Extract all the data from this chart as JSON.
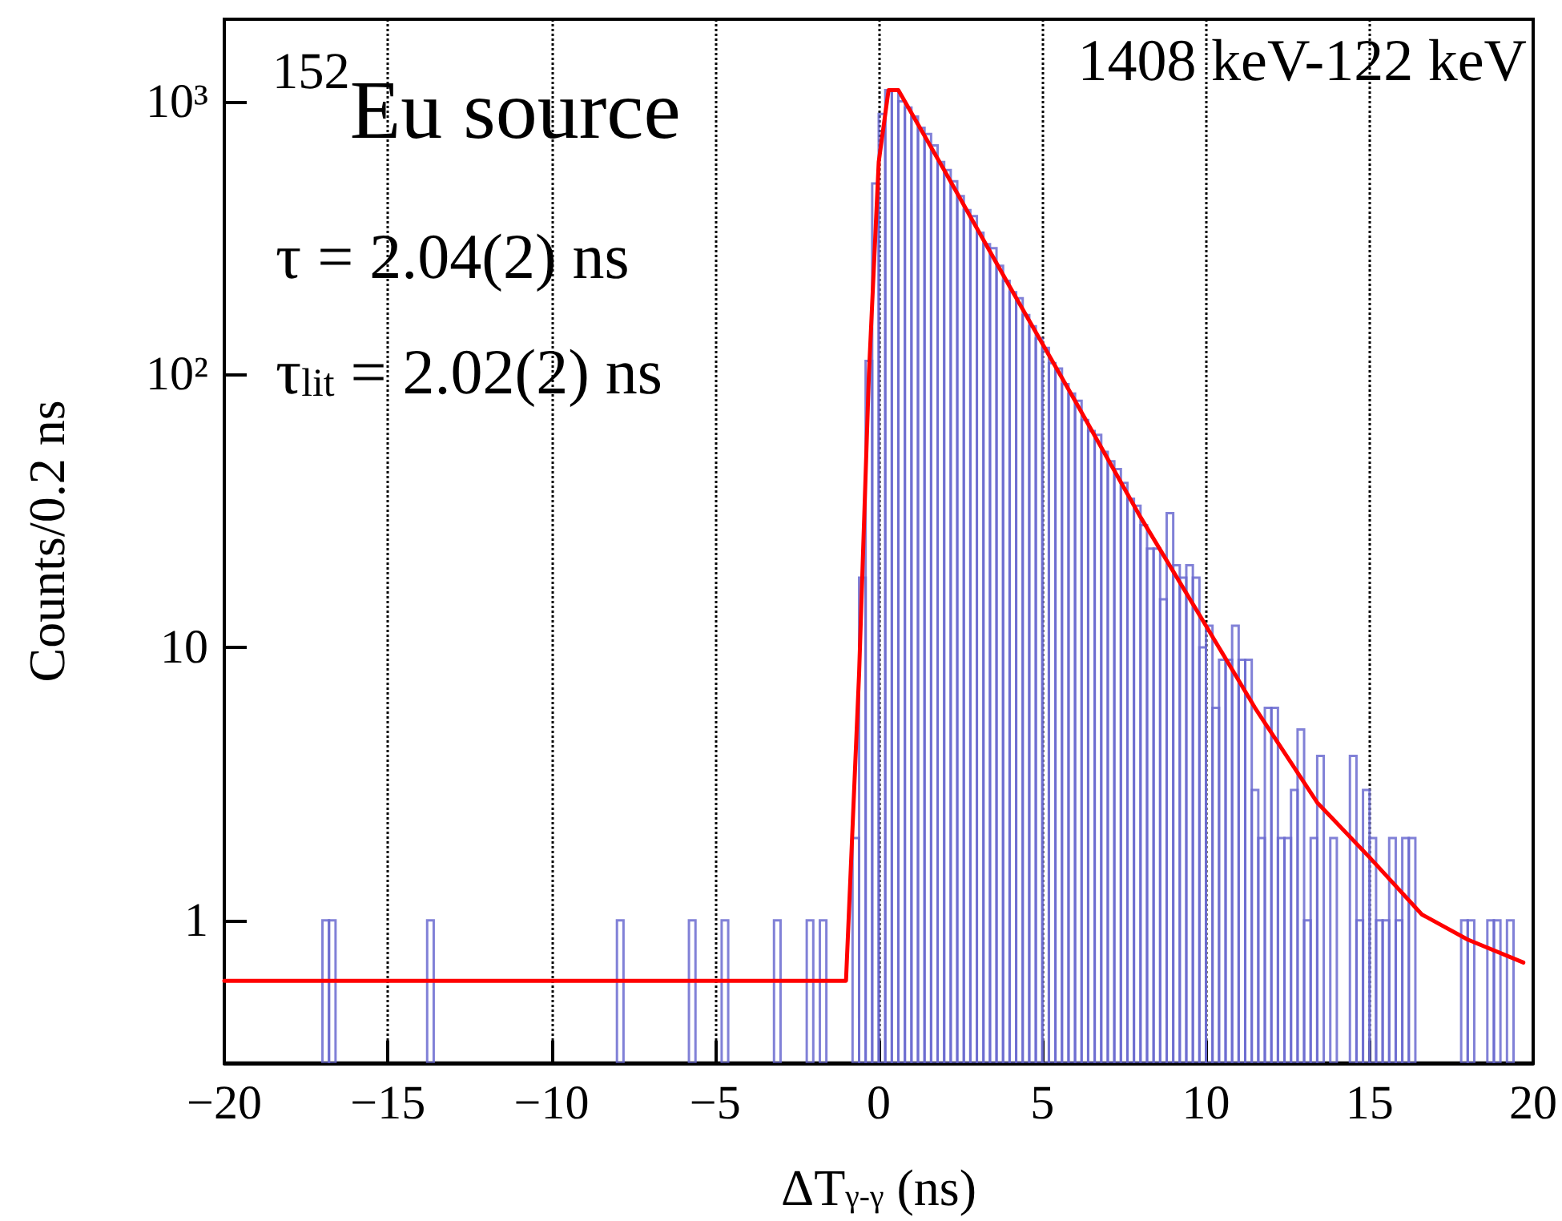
{
  "chart_data": {
    "type": "histogram",
    "xlabel": "ΔT$_{γ-γ}$ (ns)",
    "ylabel": "Counts/0.2 ns",
    "annotations": [
      "$^{152}$Eu source",
      "τ = 2.04(2) ns",
      "τ$_{lit}$ = 2.02(2) ns",
      "1408 keV-122 keV"
    ],
    "log": "y",
    "grid": "x",
    "xlim": [
      -20,
      20
    ],
    "ylim": [
      0.3,
      2000
    ],
    "xticks": [
      {
        "value": -20,
        "label": "−20"
      },
      {
        "value": -15,
        "label": "−15"
      },
      {
        "value": -10,
        "label": "−10"
      },
      {
        "value": -5,
        "label": "−5"
      },
      0,
      5,
      10,
      15,
      20
    ],
    "yticks": [
      1,
      10,
      {
        "value": 100,
        "label": "10²"
      },
      {
        "value": 1000,
        "label": "10³"
      }
    ],
    "series": [
      {
        "color": "#6b6bd0",
        "bins": [
          -20,
          -19.8,
          -19.6,
          -19.4,
          -19.2,
          -19,
          -18.8,
          -18.6,
          -18.4,
          -18.2,
          -18,
          -17.8,
          -17.6,
          -17.4,
          -17.2,
          -17,
          -16.8,
          -16.6,
          -16.4,
          -16.2,
          -16,
          -15.8,
          -15.6,
          -15.4,
          -15.2,
          -15,
          -14.8,
          -14.6,
          -14.4,
          -14.2,
          -14,
          -13.8,
          -13.6,
          -13.4,
          -13.2,
          -13,
          -12.8,
          -12.6,
          -12.4,
          -12.2,
          -12,
          -11.8,
          -11.6,
          -11.4,
          -11.2,
          -11,
          -10.8,
          -10.6,
          -10.4,
          -10.2,
          -10,
          -9.8,
          -9.6,
          -9.4,
          -9.2,
          -9,
          -8.8,
          -8.6,
          -8.4,
          -8.2,
          -8,
          -7.8,
          -7.6,
          -7.4,
          -7.2,
          -7,
          -6.8,
          -6.6,
          -6.4,
          -6.2,
          -6,
          -5.8,
          -5.6,
          -5.4,
          -5.2,
          -5,
          -4.8,
          -4.6,
          -4.4,
          -4.2,
          -4,
          -3.8,
          -3.6,
          -3.4,
          -3.2,
          -3,
          -2.8,
          -2.6,
          -2.4,
          -2.2,
          -2,
          -1.8,
          -1.6,
          -1.4,
          -1.2,
          -1,
          -0.8,
          -0.6,
          -0.4,
          -0.2,
          0,
          0.2,
          0.4,
          0.6,
          0.8,
          1,
          1.2,
          1.4,
          1.6,
          1.8,
          2,
          2.2,
          2.4,
          2.6,
          2.8,
          3,
          3.2,
          3.4,
          3.6,
          3.8,
          4,
          4.2,
          4.4,
          4.6,
          4.8,
          5,
          5.2,
          5.4,
          5.6,
          5.8,
          6,
          6.2,
          6.4,
          6.6,
          6.8,
          7,
          7.2,
          7.4,
          7.6,
          7.8,
          8,
          8.2,
          8.4,
          8.6,
          8.8,
          9,
          9.2,
          9.4,
          9.6,
          9.8,
          10,
          10.2,
          10.4,
          10.6,
          10.8,
          11,
          11.2,
          11.4,
          11.6,
          11.8,
          12,
          12.2,
          12.4,
          12.6,
          12.8,
          13,
          13.2,
          13.4,
          13.6,
          13.8,
          14,
          14.2,
          14.4,
          14.6,
          14.8,
          15,
          15.2,
          15.4,
          15.6,
          15.8,
          16,
          16.2,
          16.4,
          16.6,
          16.8,
          17,
          17.2,
          17.4,
          17.6,
          17.8,
          18,
          18.2,
          18.4,
          18.6,
          18.8,
          19,
          19.2,
          19.4,
          19.6,
          19.8,
          20
        ],
        "values": [
          null,
          null,
          null,
          null,
          null,
          null,
          null,
          null,
          null,
          null,
          null,
          null,
          null,
          null,
          null,
          1,
          1,
          null,
          null,
          null,
          null,
          null,
          null,
          null,
          null,
          null,
          null,
          null,
          null,
          null,
          null,
          1,
          null,
          null,
          null,
          null,
          null,
          null,
          null,
          null,
          null,
          null,
          null,
          null,
          null,
          null,
          null,
          null,
          null,
          null,
          null,
          null,
          null,
          null,
          null,
          null,
          null,
          null,
          null,
          null,
          1,
          null,
          null,
          null,
          null,
          null,
          null,
          null,
          null,
          null,
          null,
          1,
          null,
          null,
          null,
          null,
          1,
          null,
          null,
          null,
          null,
          null,
          null,
          null,
          1,
          null,
          null,
          null,
          null,
          1,
          null,
          1,
          null,
          null,
          null,
          null,
          2,
          18,
          112,
          500,
          900,
          1100,
          1100,
          1000,
          950,
          880,
          800,
          760,
          690,
          600,
          560,
          510,
          450,
          400,
          380,
          330,
          300,
          290,
          250,
          220,
          200,
          190,
          165,
          150,
          135,
          125,
          110,
          105,
          92,
          85,
          80,
          68,
          62,
          60,
          52,
          48,
          45,
          40,
          35,
          33,
          28,
          23,
          23,
          15,
          31,
          20,
          18,
          20,
          18,
          10,
          12,
          6,
          9,
          9,
          12,
          9,
          9,
          3,
          2,
          6,
          6,
          2,
          2,
          3,
          5,
          1,
          2,
          4,
          null,
          2,
          null,
          null,
          4,
          1,
          3,
          2,
          1,
          1,
          2,
          1,
          2,
          2,
          null,
          null,
          null,
          null,
          null,
          null,
          null,
          1,
          1,
          null,
          null,
          1,
          1,
          null,
          1,
          null,
          null,
          null
        ]
      },
      {
        "type": "line",
        "color": "#ff0000",
        "x": [
          -20,
          -1,
          -0.6,
          -0.3,
          0,
          0.3,
          0.6,
          2,
          4,
          6,
          8,
          10,
          11.5,
          13.4,
          15,
          16.6,
          18,
          19.7
        ],
        "values": [
          0.6,
          0.6,
          8,
          100,
          600,
          1100,
          1100,
          560,
          210,
          80,
          30,
          12,
          6,
          2.7,
          1.7,
          1.05,
          0.85,
          0.7
        ]
      }
    ]
  }
}
